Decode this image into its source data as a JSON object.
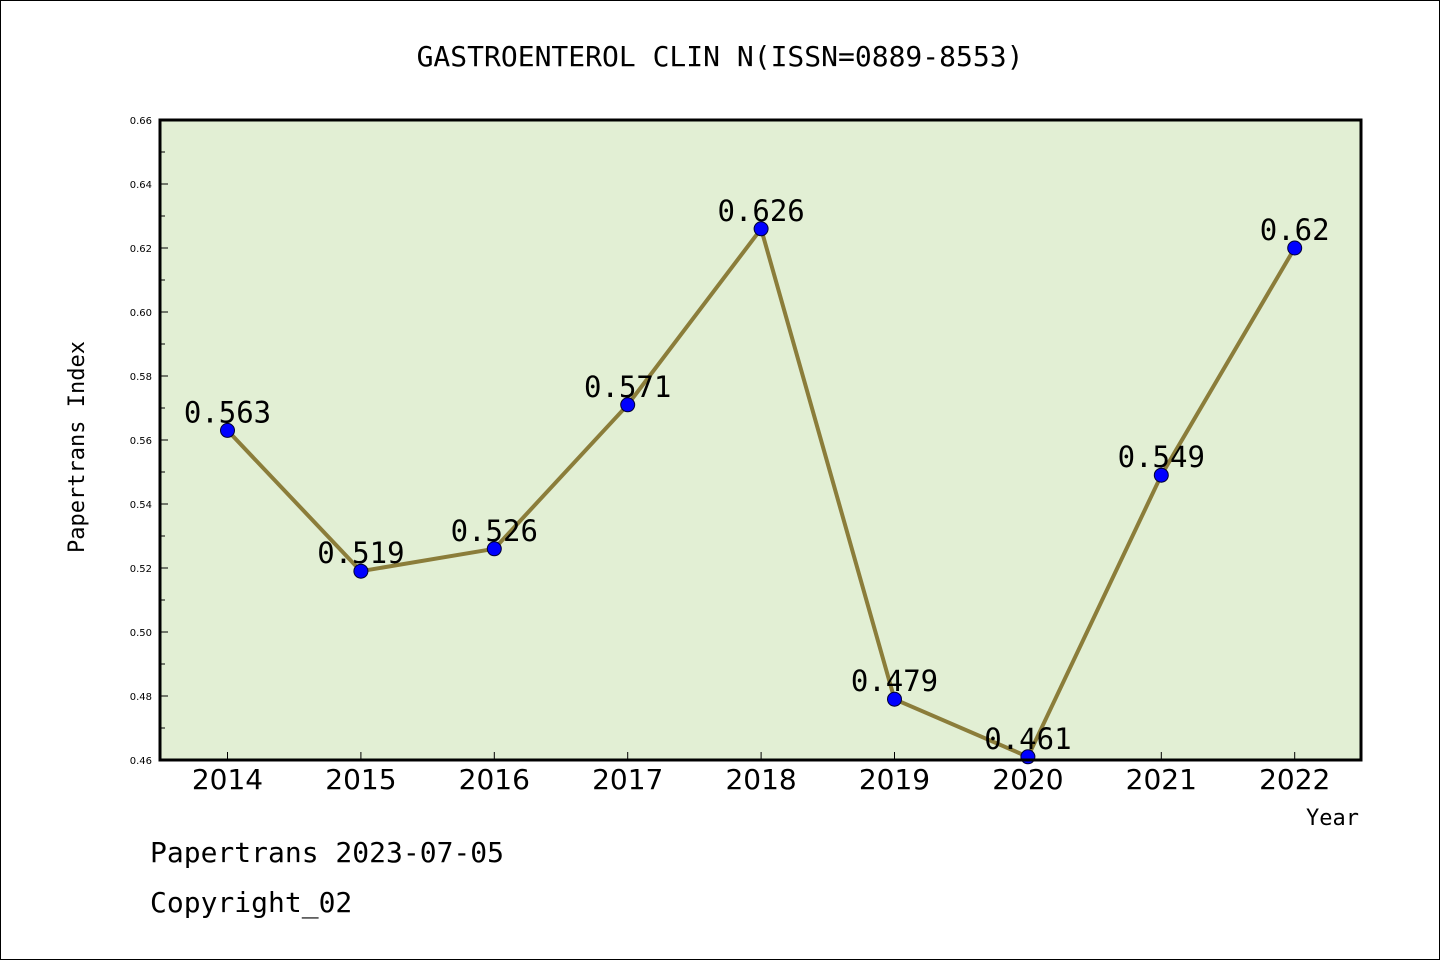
{
  "footer": {
    "stamp": "Papertrans 2023-07-05",
    "copyright": "Copyright_02"
  },
  "chart_data": {
    "type": "line",
    "title": "GASTROENTEROL CLIN N(ISSN=0889-8553)",
    "xlabel": "Year",
    "ylabel": "Papertrans Index",
    "categories": [
      "2014",
      "2015",
      "2016",
      "2017",
      "2018",
      "2019",
      "2020",
      "2021",
      "2022"
    ],
    "values": [
      0.563,
      0.519,
      0.526,
      0.571,
      0.626,
      0.479,
      0.461,
      0.549,
      0.62
    ],
    "data_labels": [
      "0.563",
      "0.519",
      "0.526",
      "0.571",
      "0.626",
      "0.479",
      "0.461",
      "0.549",
      "0.62"
    ],
    "ylim": [
      0.46,
      0.66
    ],
    "yticks": [
      "0.46",
      "0.48",
      "0.50",
      "0.52",
      "0.54",
      "0.56",
      "0.58",
      "0.60",
      "0.62",
      "0.64",
      "0.66"
    ],
    "grid": false,
    "legend": "none",
    "colors": {
      "plot_background": "#e2efd4",
      "line": "#8b7d3a",
      "marker": "#0000ff",
      "axes": "#000000"
    }
  }
}
